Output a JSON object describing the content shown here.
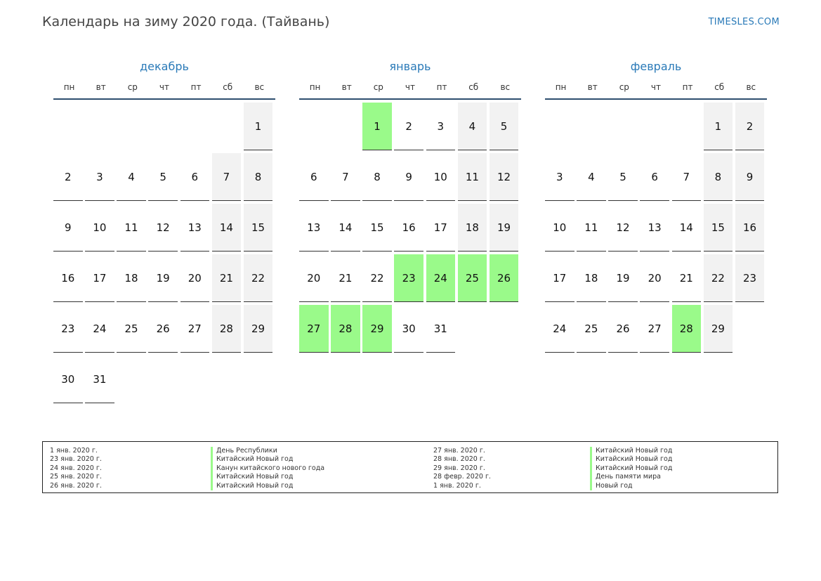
{
  "page": {
    "title": "Календарь на зиму 2020 года. (Тайвань)",
    "brand": "TIMESLES.COM"
  },
  "colors": {
    "accent": "#2a7ab8",
    "holiday": "#9afa8a",
    "weekend": "#f2f2f2"
  },
  "weekdays": [
    "пн",
    "вт",
    "ср",
    "чт",
    "пт",
    "сб",
    "вс"
  ],
  "months": [
    {
      "name": "декабрь",
      "offset": 6,
      "days": 31,
      "holidays": []
    },
    {
      "name": "январь",
      "offset": 2,
      "days": 31,
      "holidays": [
        1,
        23,
        24,
        25,
        26,
        27,
        28,
        29
      ]
    },
    {
      "name": "февраль",
      "offset": 5,
      "days": 29,
      "holidays": [
        28
      ]
    }
  ],
  "legend": {
    "left": [
      {
        "date": "1 янв. 2020 г.",
        "name": "День Республики"
      },
      {
        "date": "23 янв. 2020 г.",
        "name": "Китайский Новый год"
      },
      {
        "date": "24 янв. 2020 г.",
        "name": "Канун китайского нового года"
      },
      {
        "date": "25 янв. 2020 г.",
        "name": "Китайский Новый год"
      },
      {
        "date": "26 янв. 2020 г.",
        "name": "Китайский Новый год"
      }
    ],
    "right": [
      {
        "date": "27 янв. 2020 г.",
        "name": "Китайский Новый год"
      },
      {
        "date": "28 янв. 2020 г.",
        "name": "Китайский Новый год"
      },
      {
        "date": "29 янв. 2020 г.",
        "name": "Китайский Новый год"
      },
      {
        "date": "28 февр. 2020 г.",
        "name": "День памяти мира"
      },
      {
        "date": "1 янв. 2020 г.",
        "name": "Новый год"
      }
    ]
  }
}
